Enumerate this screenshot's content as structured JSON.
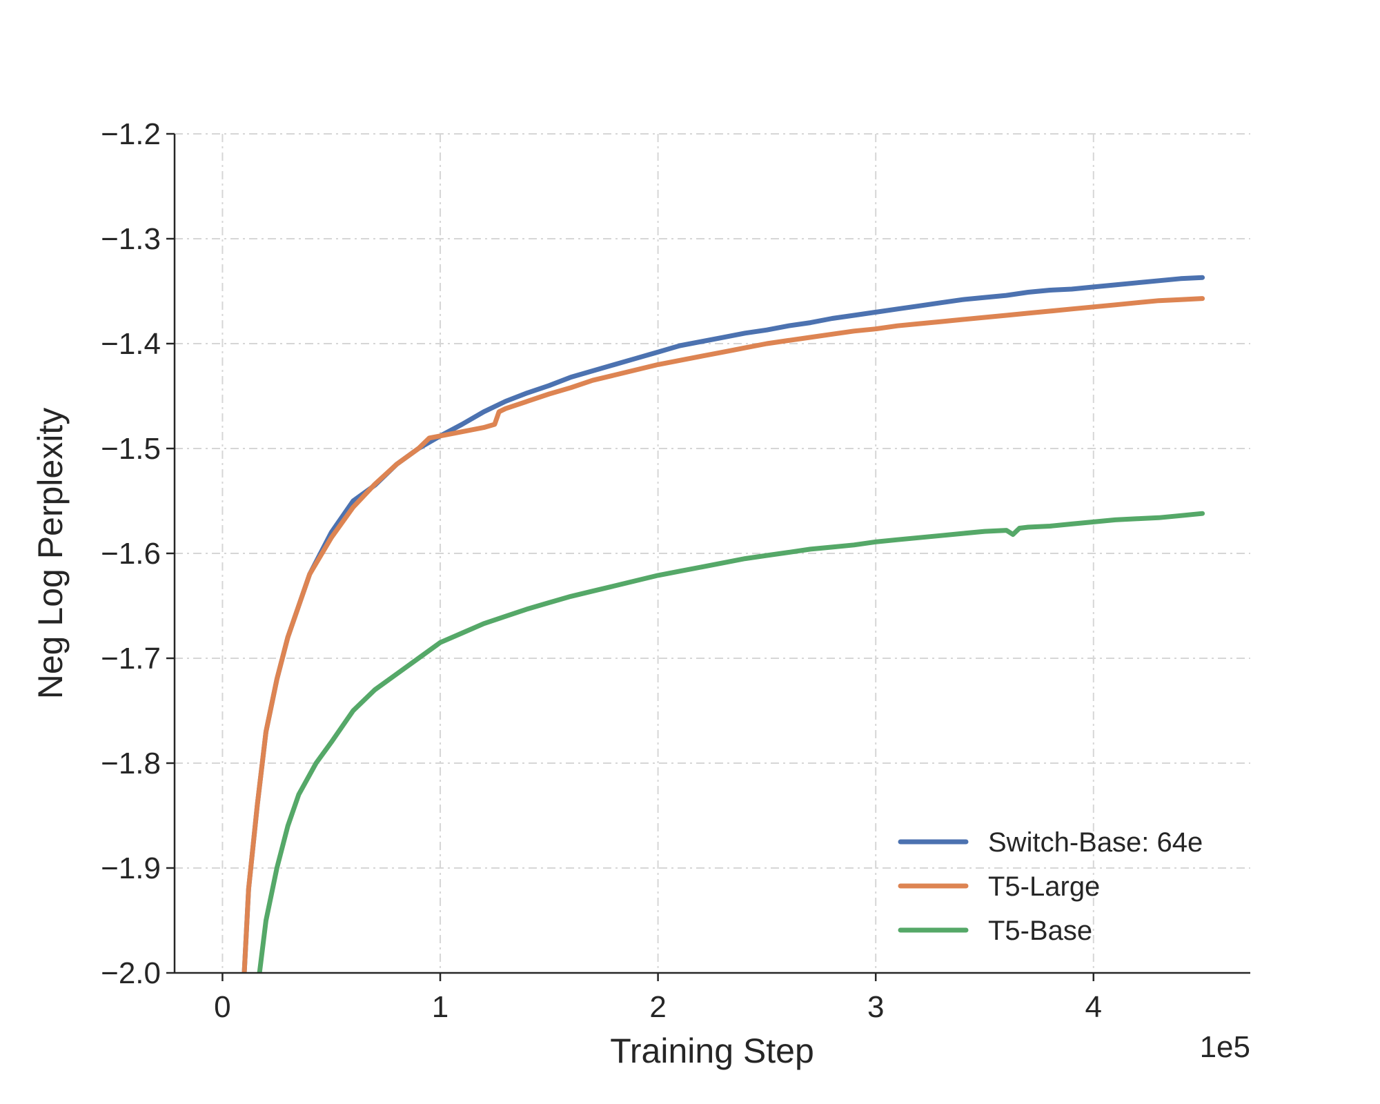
{
  "chart_data": {
    "type": "line",
    "title": "",
    "xlabel": "Training Step",
    "ylabel": "Neg Log Perplexity",
    "x_offset_label": "1e5",
    "xlim": [
      -0.22,
      4.72
    ],
    "ylim": [
      -2.0,
      -1.2
    ],
    "x_ticks": [
      0,
      1,
      2,
      3,
      4
    ],
    "x_tick_labels": [
      "0",
      "1",
      "2",
      "3",
      "4"
    ],
    "y_ticks": [
      -2.0,
      -1.9,
      -1.8,
      -1.7,
      -1.6,
      -1.5,
      -1.4,
      -1.3,
      -1.2
    ],
    "y_tick_labels": [
      "−2.0",
      "−1.9",
      "−1.8",
      "−1.7",
      "−1.6",
      "−1.5",
      "−1.4",
      "−1.3",
      "−1.2"
    ],
    "grid": true,
    "legend_position": "lower-right",
    "series": [
      {
        "name": "Switch-Base: 64e",
        "color": "#4c72b0",
        "points": [
          [
            0.1,
            -2.0
          ],
          [
            0.12,
            -1.92
          ],
          [
            0.16,
            -1.84
          ],
          [
            0.2,
            -1.77
          ],
          [
            0.25,
            -1.72
          ],
          [
            0.3,
            -1.68
          ],
          [
            0.35,
            -1.65
          ],
          [
            0.4,
            -1.62
          ],
          [
            0.5,
            -1.58
          ],
          [
            0.6,
            -1.55
          ],
          [
            0.7,
            -1.535
          ],
          [
            0.8,
            -1.515
          ],
          [
            0.9,
            -1.5
          ],
          [
            1.0,
            -1.488
          ],
          [
            1.1,
            -1.477
          ],
          [
            1.2,
            -1.465
          ],
          [
            1.3,
            -1.455
          ],
          [
            1.4,
            -1.447
          ],
          [
            1.5,
            -1.44
          ],
          [
            1.6,
            -1.432
          ],
          [
            1.7,
            -1.426
          ],
          [
            1.8,
            -1.42
          ],
          [
            1.9,
            -1.414
          ],
          [
            2.0,
            -1.408
          ],
          [
            2.1,
            -1.402
          ],
          [
            2.2,
            -1.398
          ],
          [
            2.3,
            -1.394
          ],
          [
            2.4,
            -1.39
          ],
          [
            2.5,
            -1.387
          ],
          [
            2.6,
            -1.383
          ],
          [
            2.7,
            -1.38
          ],
          [
            2.8,
            -1.376
          ],
          [
            2.9,
            -1.373
          ],
          [
            3.0,
            -1.37
          ],
          [
            3.1,
            -1.367
          ],
          [
            3.2,
            -1.364
          ],
          [
            3.3,
            -1.361
          ],
          [
            3.4,
            -1.358
          ],
          [
            3.5,
            -1.356
          ],
          [
            3.6,
            -1.354
          ],
          [
            3.7,
            -1.351
          ],
          [
            3.8,
            -1.349
          ],
          [
            3.9,
            -1.348
          ],
          [
            4.0,
            -1.346
          ],
          [
            4.1,
            -1.344
          ],
          [
            4.2,
            -1.342
          ],
          [
            4.3,
            -1.34
          ],
          [
            4.4,
            -1.338
          ],
          [
            4.5,
            -1.337
          ]
        ]
      },
      {
        "name": "T5-Large",
        "color": "#dd8452",
        "points": [
          [
            0.1,
            -2.0
          ],
          [
            0.12,
            -1.92
          ],
          [
            0.16,
            -1.84
          ],
          [
            0.2,
            -1.77
          ],
          [
            0.25,
            -1.72
          ],
          [
            0.3,
            -1.68
          ],
          [
            0.35,
            -1.65
          ],
          [
            0.4,
            -1.62
          ],
          [
            0.5,
            -1.585
          ],
          [
            0.6,
            -1.556
          ],
          [
            0.7,
            -1.534
          ],
          [
            0.8,
            -1.515
          ],
          [
            0.9,
            -1.5
          ],
          [
            0.95,
            -1.49
          ],
          [
            1.0,
            -1.488
          ],
          [
            1.1,
            -1.484
          ],
          [
            1.2,
            -1.48
          ],
          [
            1.25,
            -1.477
          ],
          [
            1.27,
            -1.465
          ],
          [
            1.3,
            -1.462
          ],
          [
            1.4,
            -1.455
          ],
          [
            1.5,
            -1.448
          ],
          [
            1.6,
            -1.442
          ],
          [
            1.7,
            -1.435
          ],
          [
            1.8,
            -1.43
          ],
          [
            1.9,
            -1.425
          ],
          [
            2.0,
            -1.42
          ],
          [
            2.1,
            -1.416
          ],
          [
            2.2,
            -1.412
          ],
          [
            2.3,
            -1.408
          ],
          [
            2.4,
            -1.404
          ],
          [
            2.5,
            -1.4
          ],
          [
            2.6,
            -1.397
          ],
          [
            2.7,
            -1.394
          ],
          [
            2.8,
            -1.391
          ],
          [
            2.9,
            -1.388
          ],
          [
            3.0,
            -1.386
          ],
          [
            3.1,
            -1.383
          ],
          [
            3.2,
            -1.381
          ],
          [
            3.3,
            -1.379
          ],
          [
            3.4,
            -1.377
          ],
          [
            3.5,
            -1.375
          ],
          [
            3.6,
            -1.373
          ],
          [
            3.7,
            -1.371
          ],
          [
            3.8,
            -1.369
          ],
          [
            3.9,
            -1.367
          ],
          [
            4.0,
            -1.365
          ],
          [
            4.1,
            -1.363
          ],
          [
            4.2,
            -1.361
          ],
          [
            4.3,
            -1.359
          ],
          [
            4.4,
            -1.358
          ],
          [
            4.5,
            -1.357
          ]
        ]
      },
      {
        "name": "T5-Base",
        "color": "#55a868",
        "points": [
          [
            0.17,
            -2.0
          ],
          [
            0.2,
            -1.95
          ],
          [
            0.25,
            -1.9
          ],
          [
            0.3,
            -1.86
          ],
          [
            0.35,
            -1.83
          ],
          [
            0.43,
            -1.8
          ],
          [
            0.5,
            -1.78
          ],
          [
            0.6,
            -1.75
          ],
          [
            0.7,
            -1.73
          ],
          [
            0.8,
            -1.715
          ],
          [
            0.9,
            -1.7
          ],
          [
            1.0,
            -1.685
          ],
          [
            1.1,
            -1.676
          ],
          [
            1.2,
            -1.667
          ],
          [
            1.3,
            -1.66
          ],
          [
            1.4,
            -1.653
          ],
          [
            1.5,
            -1.647
          ],
          [
            1.6,
            -1.641
          ],
          [
            1.7,
            -1.636
          ],
          [
            1.8,
            -1.631
          ],
          [
            1.9,
            -1.626
          ],
          [
            2.0,
            -1.621
          ],
          [
            2.1,
            -1.617
          ],
          [
            2.2,
            -1.613
          ],
          [
            2.3,
            -1.609
          ],
          [
            2.4,
            -1.605
          ],
          [
            2.5,
            -1.602
          ],
          [
            2.6,
            -1.599
          ],
          [
            2.7,
            -1.596
          ],
          [
            2.8,
            -1.594
          ],
          [
            2.9,
            -1.592
          ],
          [
            3.0,
            -1.589
          ],
          [
            3.1,
            -1.587
          ],
          [
            3.2,
            -1.585
          ],
          [
            3.3,
            -1.583
          ],
          [
            3.4,
            -1.581
          ],
          [
            3.5,
            -1.579
          ],
          [
            3.6,
            -1.578
          ],
          [
            3.63,
            -1.582
          ],
          [
            3.66,
            -1.576
          ],
          [
            3.7,
            -1.575
          ],
          [
            3.8,
            -1.574
          ],
          [
            3.9,
            -1.572
          ],
          [
            4.0,
            -1.57
          ],
          [
            4.1,
            -1.568
          ],
          [
            4.2,
            -1.567
          ],
          [
            4.3,
            -1.566
          ],
          [
            4.4,
            -1.564
          ],
          [
            4.5,
            -1.562
          ]
        ]
      }
    ]
  }
}
